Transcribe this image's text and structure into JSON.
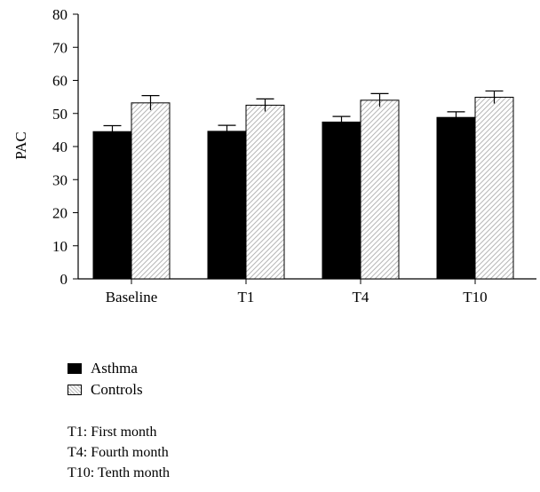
{
  "chart_data": {
    "type": "bar",
    "categories": [
      "Baseline",
      "T1",
      "T4",
      "T10"
    ],
    "ylabel": "PAC",
    "xlabel": "",
    "ylim": [
      0,
      80
    ],
    "yticks": [
      0,
      10,
      20,
      30,
      40,
      50,
      60,
      70,
      80
    ],
    "grid": false,
    "series": [
      {
        "name": "Asthma",
        "values": [
          44.5,
          44.6,
          47.4,
          48.8
        ],
        "errors": [
          1.8,
          1.8,
          1.7,
          1.7
        ],
        "color": "#000000"
      },
      {
        "name": "Controls",
        "values": [
          53.2,
          52.5,
          54.0,
          54.9
        ],
        "errors": [
          2.2,
          1.9,
          2.0,
          1.9
        ],
        "color": "#d9d9d9",
        "pattern": "diagonal-hatch"
      }
    ],
    "legend_position": "below chart"
  },
  "legend": {
    "asthma_label": "Asthma",
    "controls_label": "Controls"
  },
  "notes": [
    "T1: First month",
    "T4: Fourth month",
    "T10: Tenth month"
  ]
}
